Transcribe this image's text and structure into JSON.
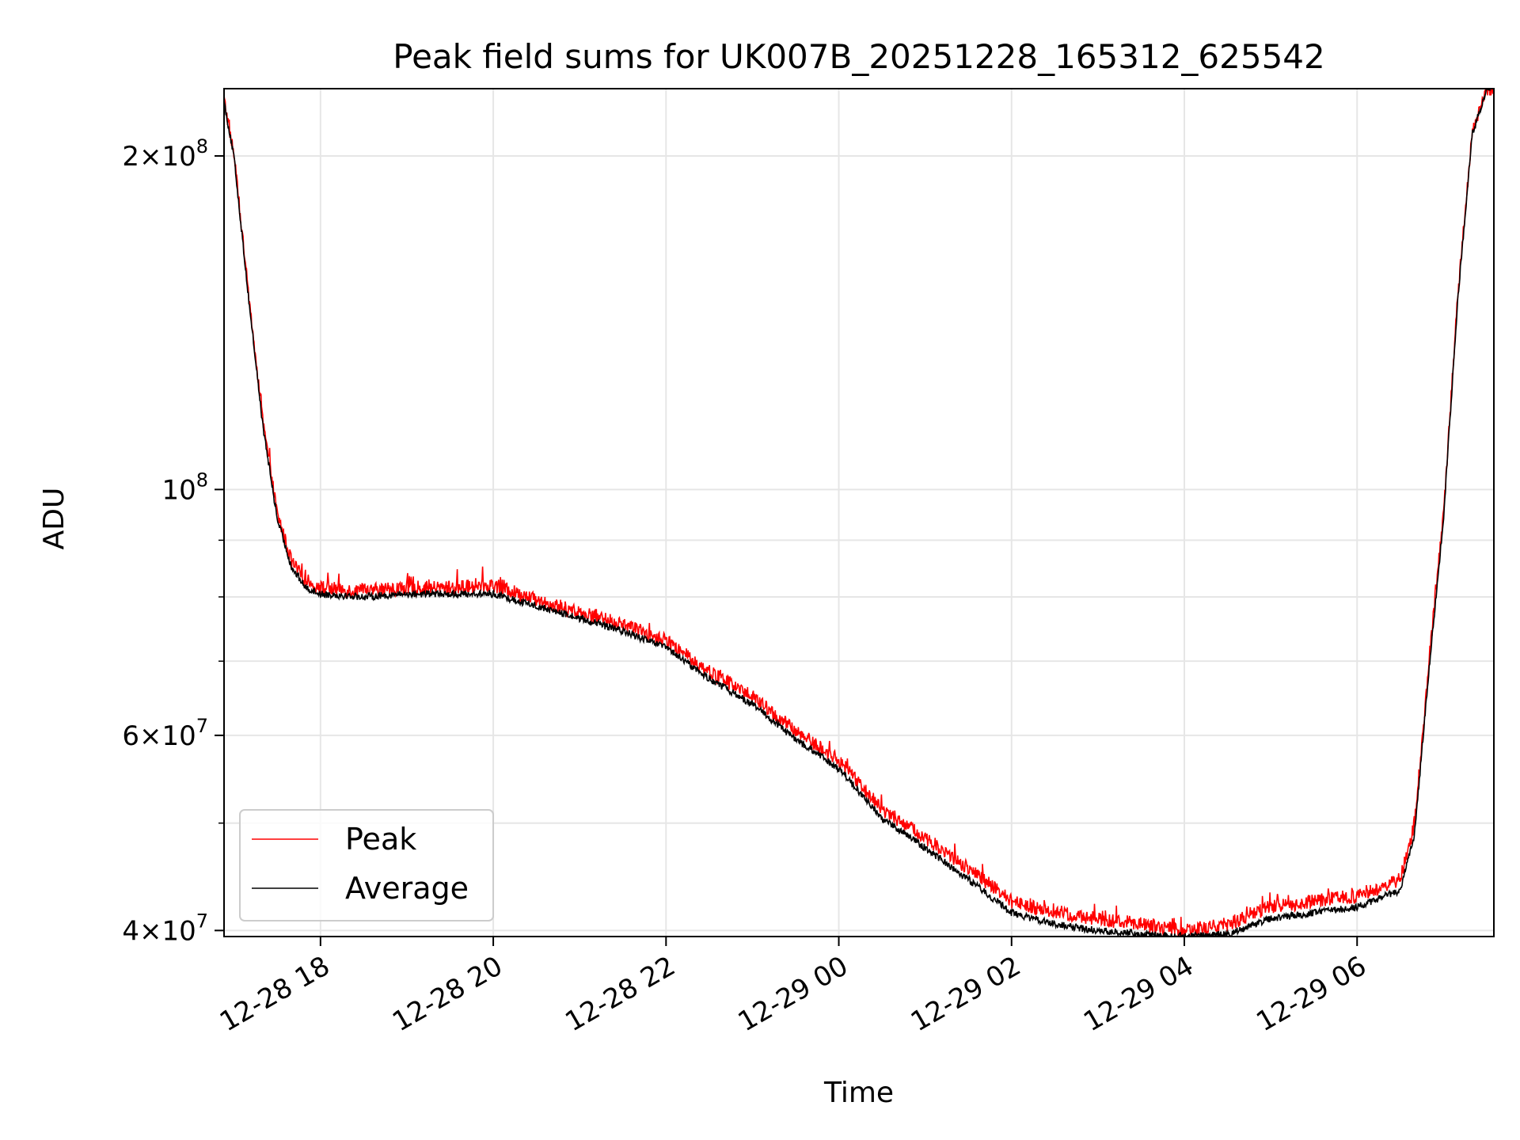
{
  "chart_data": {
    "type": "line",
    "title": "Peak field sums for UK007B_20251228_165312_625542",
    "xlabel": "Time",
    "ylabel": "ADU",
    "y_scale": "log",
    "ylim": [
      39500000,
      230000000
    ],
    "xlim": [
      "2025-12-28 16:53",
      "2025-12-29 07:35"
    ],
    "grid": true,
    "legend_position": "lower-left",
    "x_tick_labels": [
      "12-28 18",
      "12-28 20",
      "12-28 22",
      "12-29 00",
      "12-29 02",
      "12-29 04",
      "12-29 06"
    ],
    "x_ticks": [
      "2025-12-28 18:00",
      "2025-12-28 20:00",
      "2025-12-28 22:00",
      "2025-12-29 00:00",
      "2025-12-29 02:00",
      "2025-12-29 04:00",
      "2025-12-29 06:00"
    ],
    "y_ticks": [
      {
        "value": 40000000,
        "mantissa": "4",
        "exponent": "7"
      },
      {
        "value": 60000000,
        "mantissa": "6",
        "exponent": "7"
      },
      {
        "value": 100000000,
        "mantissa": "",
        "exponent": "8"
      },
      {
        "value": 200000000,
        "mantissa": "2",
        "exponent": "8"
      }
    ],
    "y_minor_ticks": [
      50000000,
      70000000,
      80000000,
      90000000
    ],
    "series": [
      {
        "name": "Peak",
        "color": "#ff0000",
        "noise": "high",
        "x": [
          "2025-12-28 16:53",
          "2025-12-28 17:00",
          "2025-12-28 17:10",
          "2025-12-28 17:20",
          "2025-12-28 17:30",
          "2025-12-28 17:40",
          "2025-12-28 17:50",
          "2025-12-28 18:00",
          "2025-12-28 18:30",
          "2025-12-28 19:00",
          "2025-12-28 19:30",
          "2025-12-28 20:00",
          "2025-12-28 20:30",
          "2025-12-28 21:00",
          "2025-12-28 21:30",
          "2025-12-28 22:00",
          "2025-12-28 22:30",
          "2025-12-28 23:00",
          "2025-12-28 23:30",
          "2025-12-29 00:00",
          "2025-12-29 00:30",
          "2025-12-29 01:00",
          "2025-12-29 01:30",
          "2025-12-29 02:00",
          "2025-12-29 02:30",
          "2025-12-29 03:00",
          "2025-12-29 03:30",
          "2025-12-29 04:00",
          "2025-12-29 04:30",
          "2025-12-29 05:00",
          "2025-12-29 05:30",
          "2025-12-29 06:00",
          "2025-12-29 06:30",
          "2025-12-29 06:40",
          "2025-12-29 06:50",
          "2025-12-29 07:00",
          "2025-12-29 07:10",
          "2025-12-29 07:20",
          "2025-12-29 07:30",
          "2025-12-29 07:35"
        ],
        "y": [
          225000000,
          200000000,
          150000000,
          115000000,
          95000000,
          86000000,
          82500000,
          81500000,
          81000000,
          81500000,
          81500000,
          82000000,
          79500000,
          77500000,
          75500000,
          73000000,
          68500000,
          65000000,
          60500000,
          57000000,
          51500000,
          48500000,
          45500000,
          42500000,
          41500000,
          41000000,
          40500000,
          40000000,
          40500000,
          42000000,
          42500000,
          43000000,
          44500000,
          50000000,
          70000000,
          95000000,
          150000000,
          210000000,
          230000000,
          230000000
        ]
      },
      {
        "name": "Average",
        "color": "#000000",
        "noise": "low",
        "x": [
          "2025-12-28 16:53",
          "2025-12-28 17:00",
          "2025-12-28 17:10",
          "2025-12-28 17:20",
          "2025-12-28 17:30",
          "2025-12-28 17:40",
          "2025-12-28 17:50",
          "2025-12-28 18:00",
          "2025-12-28 18:30",
          "2025-12-28 19:00",
          "2025-12-28 19:30",
          "2025-12-28 20:00",
          "2025-12-28 20:30",
          "2025-12-28 21:00",
          "2025-12-28 21:30",
          "2025-12-28 22:00",
          "2025-12-28 22:30",
          "2025-12-28 23:00",
          "2025-12-28 23:30",
          "2025-12-29 00:00",
          "2025-12-29 00:30",
          "2025-12-29 01:00",
          "2025-12-29 01:30",
          "2025-12-29 02:00",
          "2025-12-29 02:30",
          "2025-12-29 03:00",
          "2025-12-29 03:30",
          "2025-12-29 04:00",
          "2025-12-29 04:30",
          "2025-12-29 05:00",
          "2025-12-29 05:30",
          "2025-12-29 06:00",
          "2025-12-29 06:30",
          "2025-12-29 06:40",
          "2025-12-29 06:50",
          "2025-12-29 07:00",
          "2025-12-29 07:10",
          "2025-12-29 07:20",
          "2025-12-29 07:30",
          "2025-12-29 07:35"
        ],
        "y": [
          224000000,
          199000000,
          149000000,
          114000000,
          94000000,
          85000000,
          81500000,
          80500000,
          80000000,
          80500000,
          80500000,
          80500000,
          78500000,
          76500000,
          74500000,
          72000000,
          67500000,
          64000000,
          59500000,
          56000000,
          50500000,
          47500000,
          44500000,
          41500000,
          40500000,
          40000000,
          39700000,
          39500000,
          39700000,
          41000000,
          41500000,
          42000000,
          43500000,
          49000000,
          69000000,
          94000000,
          149000000,
          209000000,
          230000000,
          230000000
        ]
      }
    ]
  }
}
